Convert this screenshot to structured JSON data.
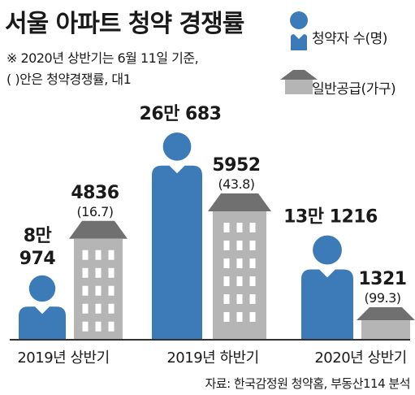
{
  "title": "서울 아파트 청약 경쟁률",
  "notes": [
    "※ 2020년 상반기는 6월 11일 기준,",
    "( )안은 청약경쟁률, 대1"
  ],
  "legend": {
    "applicants": "청약자 수(명)",
    "supply": "일반공급(가구)"
  },
  "source": "자료: 한국감정원 청약홈, 부동산114 분석",
  "colors": {
    "person": "#3d7ab8",
    "building_wall": "#b5b5b5",
    "building_roof": "#707070",
    "window": "#ffffff",
    "baseline": "#333333"
  },
  "icons": {
    "person": "person-icon",
    "building": "building-icon"
  },
  "chart_data": {
    "type": "bar",
    "title": "서울 아파트 청약 경쟁률",
    "categories": [
      "2019년 상반기",
      "2019년 하반기",
      "2020년 상반기"
    ],
    "series": [
      {
        "name": "청약자 수(명)",
        "values": [
          80974,
          260683,
          131216
        ],
        "labels": [
          "8만 974",
          "26만 683",
          "13만 1216"
        ]
      },
      {
        "name": "일반공급(가구)",
        "values": [
          4836,
          5952,
          1321
        ],
        "labels": [
          "4836",
          "5952",
          "1321"
        ]
      }
    ],
    "competition_ratio": [
      16.7,
      43.8,
      99.3
    ],
    "competition_labels": [
      "(16.7)",
      "(43.8)",
      "(99.3)"
    ]
  }
}
